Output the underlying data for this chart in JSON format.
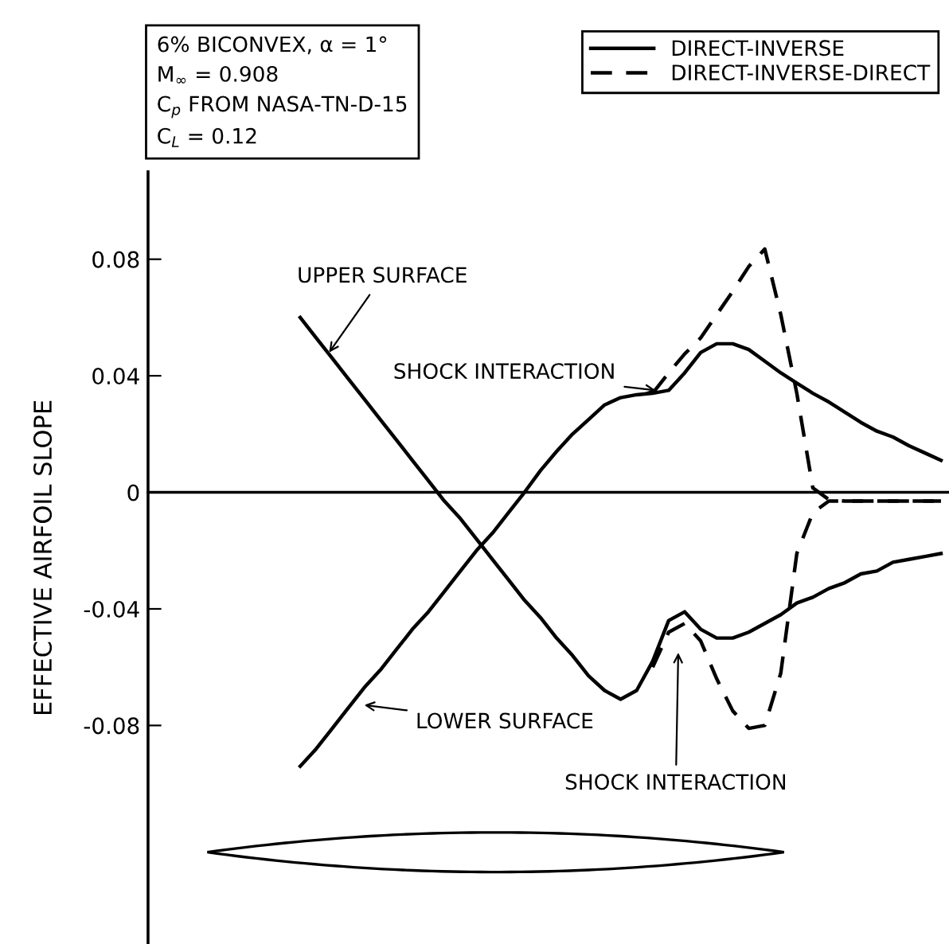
{
  "chart_data": {
    "type": "line",
    "ylabel": "EFFECTIVE AIRFOIL SLOPE",
    "categories": [
      null,
      null,
      null,
      null,
      null,
      null,
      null,
      null,
      null,
      null,
      null,
      null,
      null,
      null,
      null,
      null,
      null,
      null,
      null,
      null,
      null,
      null,
      null,
      null,
      null,
      null,
      null,
      null,
      null,
      null,
      null,
      null,
      null,
      null,
      null,
      null,
      null,
      null,
      null,
      null,
      null,
      null,
      null,
      null,
      null,
      null,
      null,
      null,
      null,
      null
    ],
    "series": [
      {
        "name": "DIRECT-INVERSE",
        "color": "#000000",
        "line_style": "solid",
        "values": [
          null,
          null,
          null,
          null,
          null,
          null,
          null,
          null,
          null,
          0.06,
          0.053,
          0.046,
          0.039,
          0.032,
          0.025,
          0.018,
          0.011,
          0.004,
          -0.003,
          -0.009,
          -0.016,
          -0.023,
          -0.03,
          -0.037,
          -0.043,
          -0.05,
          -0.056,
          -0.063,
          -0.068,
          -0.071,
          -0.068,
          -0.058,
          -0.044,
          -0.041,
          -0.047,
          -0.05,
          -0.05,
          -0.048,
          -0.045,
          -0.042,
          -0.038,
          -0.036,
          -0.033,
          -0.031,
          -0.028,
          -0.027,
          -0.024,
          -0.023,
          -0.022,
          -0.021
        ]
      },
      {
        "color": "#000000",
        "line_style": "solid",
        "values": [
          null,
          null,
          null,
          null,
          null,
          null,
          null,
          null,
          null,
          -0.094,
          -0.088,
          -0.081,
          -0.074,
          -0.067,
          -0.061,
          -0.054,
          -0.047,
          -0.041,
          -0.034,
          -0.027,
          -0.02,
          -0.014,
          -0.007,
          0.0,
          0.0075,
          0.014,
          0.02,
          0.025,
          0.03,
          0.0325,
          0.0335,
          0.034,
          0.035,
          0.041,
          0.048,
          0.051,
          0.051,
          0.049,
          0.045,
          0.041,
          0.0375,
          0.034,
          0.031,
          0.0275,
          0.024,
          0.021,
          0.019,
          0.016,
          0.0135,
          0.011
        ]
      },
      {
        "name": "DIRECT-INVERSE-DIRECT",
        "color": "#000000",
        "line_style": "dashed",
        "values": [
          null,
          null,
          null,
          null,
          null,
          null,
          null,
          null,
          null,
          null,
          null,
          null,
          null,
          null,
          null,
          null,
          null,
          null,
          null,
          null,
          null,
          null,
          null,
          null,
          null,
          null,
          null,
          null,
          null,
          null,
          null,
          -0.06,
          -0.048,
          -0.045,
          -0.051,
          -0.064,
          -0.075,
          -0.081,
          -0.08,
          -0.062,
          -0.021,
          -0.007,
          -0.003,
          -0.003,
          -0.003,
          -0.003,
          -0.003,
          -0.003,
          -0.003,
          -0.003
        ]
      },
      {
        "color": "#000000",
        "line_style": "dashed",
        "values": [
          null,
          null,
          null,
          null,
          null,
          null,
          null,
          null,
          null,
          null,
          null,
          null,
          null,
          null,
          null,
          null,
          null,
          null,
          null,
          null,
          null,
          null,
          null,
          null,
          null,
          null,
          null,
          null,
          null,
          null,
          null,
          0.034,
          0.041,
          0.0475,
          0.053,
          0.061,
          0.069,
          0.0775,
          0.0835,
          0.061,
          0.034,
          0.0015,
          -0.0025,
          -0.003,
          -0.003,
          -0.003,
          -0.003,
          -0.003,
          -0.003,
          -0.003
        ]
      }
    ],
    "ylim": [
      -0.155,
      0.11
    ],
    "yticks": [
      -0.08,
      -0.04,
      0,
      0.04,
      0.08
    ],
    "legend": "top right",
    "annotations": [
      "6% BICONVEX, α = 1°\nM$_{∞}$ = 0.908\nC$_{p}$ FROM NASA-TN-D-15\nC$_{L}$ = 0.12",
      "UPPER SURFACE",
      "SHOCK INTERACTION",
      "LOWER SURFACE",
      "SHOCK INTERACTION"
    ]
  }
}
